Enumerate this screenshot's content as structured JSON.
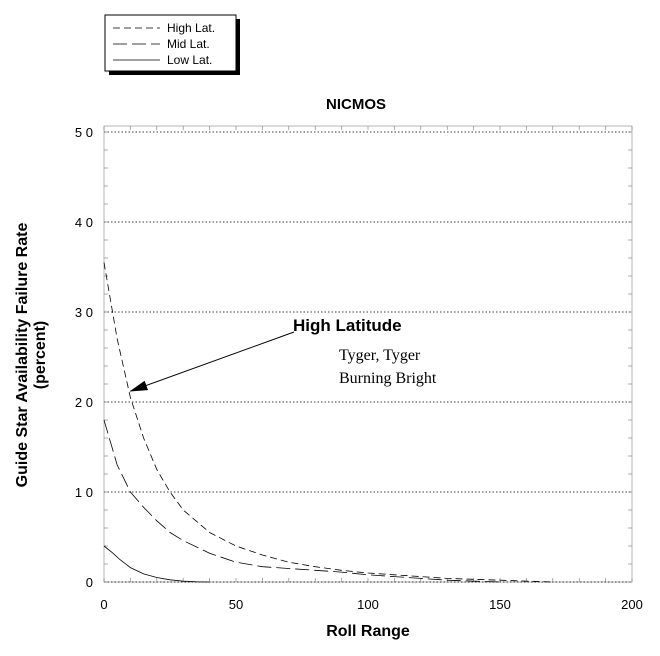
{
  "chart_data": {
    "type": "line",
    "title": "NICMOS",
    "xlabel": "Roll Range",
    "ylabel_line1": "Guide Star Availability Failure Rate",
    "ylabel_line2": "(percent)",
    "xlim": [
      0,
      200
    ],
    "ylim": [
      0,
      50
    ],
    "xticks": [
      "0",
      "50",
      "100",
      "150",
      "200"
    ],
    "yticks": [
      "0",
      "1 0",
      "2 0",
      "3 0",
      "4 0",
      "5 0"
    ],
    "ytick_values": [
      0,
      10,
      20,
      30,
      40,
      50
    ],
    "xtick_values": [
      0,
      50,
      100,
      150,
      200
    ],
    "grid": "horizontal-dotted",
    "legend_placement": "top-left",
    "series": [
      {
        "name": "High Lat.",
        "style": "dashed",
        "x": [
          0,
          5,
          10,
          15,
          20,
          25,
          30,
          40,
          50,
          60,
          70,
          80,
          90,
          100,
          110,
          120,
          130,
          140,
          150,
          160,
          170
        ],
        "y": [
          35.5,
          27,
          20.5,
          16,
          12.5,
          10,
          8,
          5.5,
          4,
          3,
          2.2,
          1.7,
          1.3,
          1,
          0.8,
          0.6,
          0.4,
          0.3,
          0.2,
          0.1,
          0
        ]
      },
      {
        "name": "Mid Lat.",
        "style": "long-dash",
        "x": [
          0,
          5,
          10,
          15,
          20,
          25,
          30,
          40,
          50,
          60,
          70,
          80,
          90,
          100,
          110,
          120,
          130,
          140,
          150
        ],
        "y": [
          18,
          13,
          10,
          8.3,
          6.8,
          5.5,
          4.6,
          3.2,
          2.2,
          1.7,
          1.5,
          1.3,
          1.1,
          0.8,
          0.6,
          0.4,
          0.2,
          0.1,
          0
        ]
      },
      {
        "name": "Low Lat.",
        "style": "solid",
        "x": [
          0,
          3,
          6,
          10,
          15,
          20,
          25,
          30,
          35,
          40
        ],
        "y": [
          4,
          3.3,
          2.5,
          1.6,
          0.9,
          0.5,
          0.25,
          0.1,
          0.02,
          0
        ]
      }
    ],
    "annotations": {
      "heading": "High Latitude",
      "line1": "Tyger, Tyger",
      "line2": "Burning Bright",
      "arrow_target": [
        10,
        21.2
      ]
    }
  }
}
